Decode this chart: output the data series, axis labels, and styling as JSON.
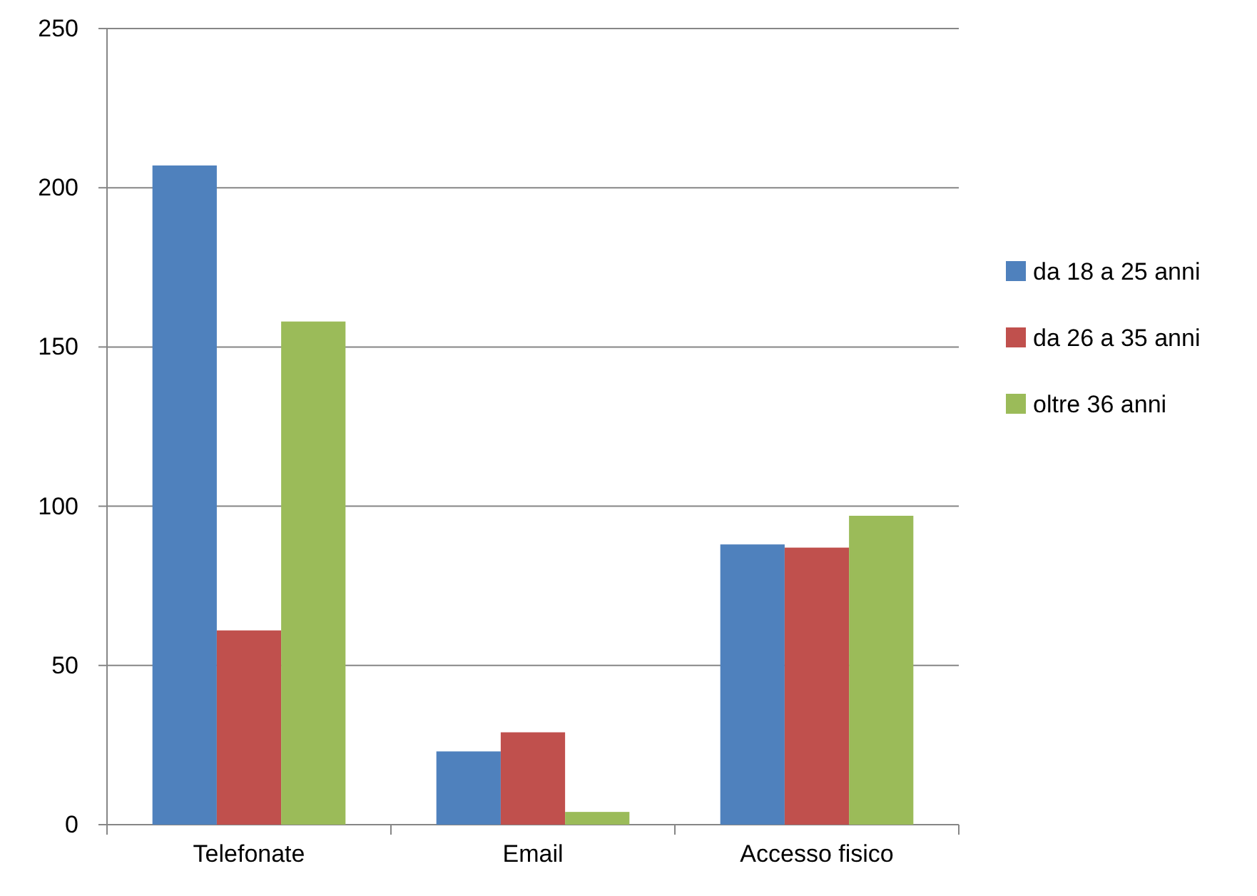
{
  "chart_data": {
    "type": "bar",
    "categories": [
      "Telefonate",
      "Email",
      "Accesso fisico"
    ],
    "series": [
      {
        "name": "da 18 a 25 anni",
        "color": "#4f81bd",
        "values": [
          207,
          23,
          88
        ]
      },
      {
        "name": "da 26 a 35 anni",
        "color": "#c0504d",
        "values": [
          61,
          29,
          87
        ]
      },
      {
        "name": "oltre 36 anni",
        "color": "#9bbb59",
        "values": [
          158,
          4,
          97
        ]
      }
    ],
    "ylim": [
      0,
      250
    ],
    "yticks": [
      0,
      50,
      100,
      150,
      200,
      250
    ],
    "grid": "y",
    "legend": "right"
  }
}
